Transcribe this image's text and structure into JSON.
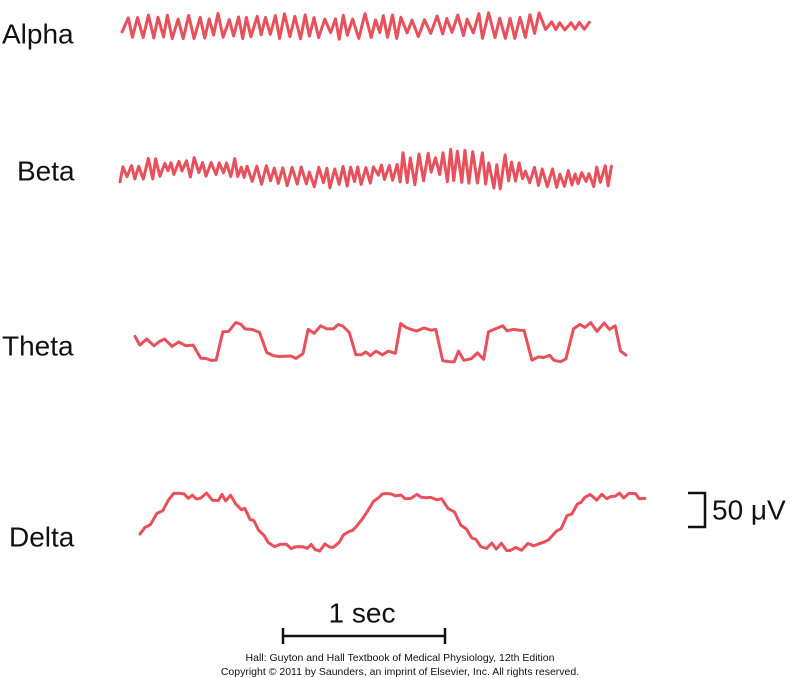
{
  "waves": [
    {
      "label": "Alpha"
    },
    {
      "label": "Beta"
    },
    {
      "label": "Theta"
    },
    {
      "label": "Delta"
    }
  ],
  "scale": {
    "voltage": "50 μV",
    "time": "1 sec"
  },
  "credits": [
    "Hall: Guyton and Hall Textbook of Medical Physiology, 12th Edition",
    "Copyright © 2011 by Saunders, an imprint of Elsevier, Inc. All rights reserved."
  ]
}
